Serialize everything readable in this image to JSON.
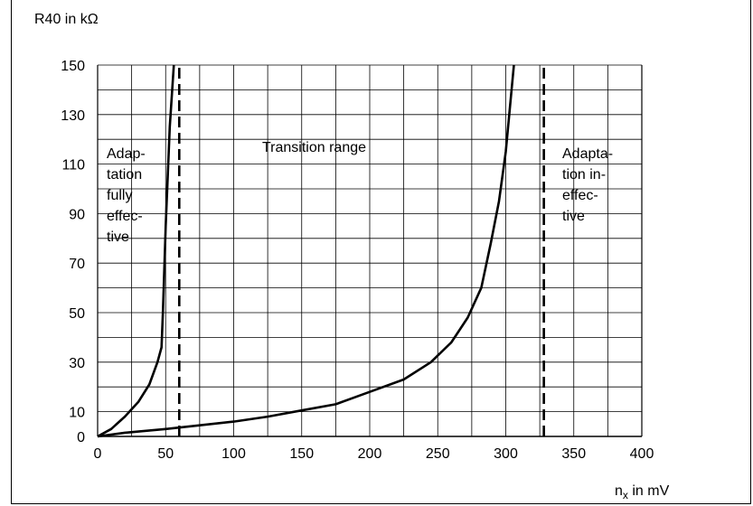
{
  "chart_data": {
    "type": "line",
    "ylabel": "R40 in kΩ",
    "xlabel_main": "n",
    "xlabel_sub": "x",
    "xlabel_unit": " in mV",
    "xlim": [
      0,
      400
    ],
    "ylim": [
      0,
      150
    ],
    "x_ticks": [
      0,
      50,
      100,
      150,
      200,
      250,
      300,
      350,
      400
    ],
    "y_ticks": [
      0,
      10,
      30,
      50,
      70,
      90,
      110,
      130,
      150
    ],
    "grid": true,
    "series": [
      {
        "x": [
          0,
          10,
          20,
          30,
          38,
          44,
          47,
          48,
          50,
          53,
          56
        ],
        "y": [
          0,
          3,
          8,
          14,
          21,
          30,
          36,
          50,
          85,
          125,
          150
        ]
      },
      {
        "x": [
          0,
          20,
          50,
          75,
          100,
          125,
          150,
          175,
          200,
          225,
          245,
          260,
          272,
          282,
          289,
          295,
          300,
          306
        ],
        "y": [
          0,
          1.5,
          3,
          4.5,
          6,
          8,
          10.5,
          13,
          18,
          23,
          30,
          38,
          48,
          60,
          78,
          95,
          115,
          150
        ]
      }
    ],
    "vlines": [
      60,
      328
    ],
    "annotations": {
      "left_region": [
        "Adap-",
        "tation",
        "fully",
        "effec-",
        "tive"
      ],
      "middle_region": "Transition range",
      "right_region": [
        "Adapta-",
        "tion in-",
        "effec-",
        "tive"
      ]
    }
  }
}
